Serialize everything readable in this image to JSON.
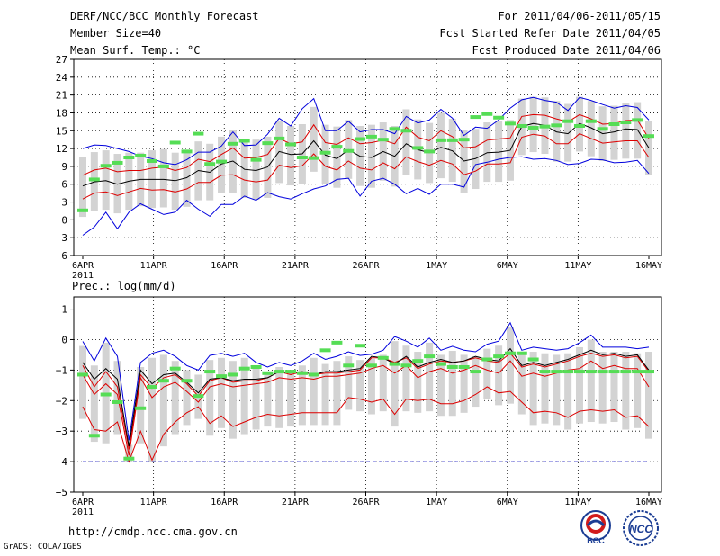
{
  "header": {
    "title": "DERF/NCC/BCC Monthly Forecast",
    "member_size": "Member Size=40",
    "variable": "Mean Surf. Temp.: °C",
    "period": "For 2011/04/06-2011/05/15",
    "started": "Fcst Started Refer Date 2011/04/05",
    "produced": "Fcst Produced Date 2011/04/06"
  },
  "footer": {
    "url": "http://cmdp.ncc.cma.gov.cn",
    "grads": "GrADS: COLA/IGES",
    "logo_bcc": "BCC",
    "logo_ncc": "NCC"
  },
  "colors": {
    "grid": "#000000",
    "box": "#d3d3d3",
    "ens_mean": "#000000",
    "std_band": "#dd0000",
    "extreme": "#0000dd",
    "climatology": "#55dd55"
  },
  "chart_data": [
    {
      "type": "box-plume",
      "title": "Mean Surf. Temp.: °C",
      "x_tick_labels": [
        "6APR",
        "11APR",
        "16APR",
        "21APR",
        "26APR",
        "1MAY",
        "6MAY",
        "11MAY",
        "16MAY"
      ],
      "x_year_label": "2011",
      "y_ticks": [
        27,
        24,
        21,
        18,
        15,
        12,
        9,
        6,
        3,
        0,
        -3,
        -6
      ],
      "ylim": [
        -6,
        27
      ],
      "series": [
        {
          "name": "max",
          "values": [
            12.0,
            12.6,
            12.5,
            12.0,
            11.5,
            10.7,
            10.3,
            9.6,
            9.3,
            10.1,
            11.4,
            11.4,
            12.4,
            14.8,
            12.5,
            12.6,
            14.4,
            17.1,
            15.8,
            18.7,
            20.4,
            15.0,
            15.0,
            16.6,
            14.8,
            15.2,
            15.2,
            14.5,
            17.4,
            16.3,
            16.8,
            18.6,
            17.1,
            14.2,
            15.6,
            15.4,
            16.8,
            18.8,
            20.2,
            20.6,
            20.1,
            19.8,
            18.4,
            20.6,
            20.1,
            19.4,
            18.8,
            19.2,
            18.9,
            16.8
          ]
        },
        {
          "name": "std_upper",
          "values": [
            7.5,
            8.4,
            8.7,
            8.1,
            8.3,
            8.3,
            8.7,
            8.9,
            8.3,
            8.8,
            10.2,
            9.8,
            11.0,
            12.1,
            10.4,
            10.5,
            11.0,
            13.7,
            12.8,
            13.1,
            16.0,
            13.0,
            12.7,
            13.8,
            12.8,
            13.0,
            13.4,
            12.8,
            15.6,
            13.9,
            13.3,
            15.0,
            14.0,
            12.1,
            12.3,
            13.4,
            13.6,
            13.8,
            17.4,
            17.7,
            17.6,
            17.0,
            16.5,
            17.7,
            17.0,
            16.1,
            16.2,
            16.7,
            16.8,
            13.7
          ]
        },
        {
          "name": "ens_mean",
          "values": [
            5.7,
            6.4,
            6.6,
            6.0,
            6.5,
            6.8,
            6.8,
            6.8,
            6.6,
            7.1,
            8.3,
            8.0,
            9.4,
            9.9,
            8.5,
            8.3,
            8.9,
            11.5,
            11.0,
            11.1,
            13.3,
            10.9,
            10.3,
            11.8,
            10.7,
            10.5,
            11.5,
            10.7,
            12.8,
            11.8,
            11.3,
            12.2,
            11.6,
            9.9,
            10.3,
            11.3,
            11.4,
            11.7,
            15.7,
            16.2,
            15.9,
            14.8,
            14.5,
            16.2,
            15.5,
            14.5,
            14.8,
            15.3,
            15.2,
            12.1
          ]
        },
        {
          "name": "std_lower",
          "values": [
            3.5,
            4.5,
            4.7,
            4.1,
            4.7,
            5.3,
            5.0,
            5.1,
            4.7,
            5.2,
            6.3,
            6.3,
            7.5,
            7.6,
            6.7,
            6.4,
            6.7,
            9.2,
            8.8,
            9.1,
            11.1,
            9.0,
            8.4,
            9.9,
            8.7,
            8.4,
            9.6,
            8.6,
            10.6,
            9.8,
            9.2,
            10.0,
            9.4,
            7.6,
            8.2,
            9.4,
            9.4,
            9.6,
            13.9,
            14.4,
            14.1,
            12.8,
            12.8,
            14.5,
            13.7,
            12.9,
            13.1,
            13.3,
            13.3,
            10.5
          ]
        },
        {
          "name": "min",
          "values": [
            -2.6,
            -1.2,
            1.3,
            -1.5,
            1.3,
            2.7,
            1.8,
            0.9,
            1.3,
            3.3,
            1.8,
            0.6,
            2.6,
            2.6,
            4.0,
            3.3,
            4.6,
            3.9,
            3.5,
            4.4,
            5.2,
            5.7,
            6.8,
            7.0,
            4.0,
            6.5,
            7.0,
            6.0,
            4.4,
            5.3,
            4.3,
            6.0,
            6.0,
            5.5,
            9.3,
            9.7,
            10.2,
            10.5,
            10.6,
            10.2,
            10.3,
            10.0,
            9.3,
            9.5,
            10.2,
            10.1,
            9.6,
            9.7,
            10.0,
            7.8
          ]
        },
        {
          "name": "climatology",
          "values": [
            1.6,
            6.8,
            9.1,
            9.6,
            10.5,
            10.8,
            9.9,
            9.0,
            13.0,
            11.5,
            14.5,
            9.4,
            9.8,
            12.8,
            13.3,
            10.1,
            12.9,
            13.7,
            12.7,
            10.5,
            10.4,
            11.3,
            12.3,
            11.6,
            13.6,
            14.0,
            13.5,
            15.3,
            15.0,
            12.1,
            11.5,
            13.4,
            13.4,
            13.5,
            17.3,
            17.8,
            17.2,
            16.2,
            15.8,
            15.5,
            15.7,
            15.9,
            16.6,
            15.8,
            16.6,
            15.3,
            16.1,
            16.4,
            16.8,
            14.1
          ]
        }
      ]
    },
    {
      "type": "box-plume",
      "title": "Prec.: log(mm/d)",
      "x_tick_labels": [
        "6APR",
        "11APR",
        "16APR",
        "21APR",
        "26APR",
        "1MAY",
        "6MAY",
        "11MAY",
        "16MAY"
      ],
      "x_year_label": "2011",
      "y_ticks": [
        1,
        0,
        -1,
        -2,
        -3,
        -4,
        -5
      ],
      "ylim": [
        -5,
        1.4
      ],
      "series": [
        {
          "name": "max",
          "values": [
            -0.06,
            -0.7,
            0.05,
            -0.55,
            -3.3,
            -0.75,
            -0.45,
            -0.35,
            -0.55,
            -0.85,
            -1.0,
            -0.52,
            -0.45,
            -0.55,
            -0.45,
            -0.75,
            -0.9,
            -0.75,
            -0.85,
            -0.7,
            -0.45,
            -0.65,
            -0.55,
            -0.4,
            -0.52,
            -0.48,
            -0.35,
            0.1,
            -0.05,
            -0.25,
            0.05,
            -0.35,
            -0.22,
            -0.35,
            -0.4,
            -0.15,
            -0.05,
            0.55,
            -0.35,
            -0.25,
            -0.3,
            -0.35,
            -0.3,
            -0.1,
            0.15,
            -0.25,
            -0.25,
            -0.25,
            -0.3,
            -0.25
          ]
        },
        {
          "name": "ens_mean",
          "values": [
            -0.75,
            -1.3,
            -0.95,
            -1.3,
            -3.5,
            -1.0,
            -1.45,
            -1.15,
            -1.1,
            -1.4,
            -1.75,
            -1.3,
            -1.25,
            -1.35,
            -1.3,
            -1.3,
            -1.25,
            -1.05,
            -1.1,
            -1.05,
            -1.15,
            -1.05,
            -1.05,
            -1.0,
            -0.95,
            -0.55,
            -0.6,
            -0.8,
            -0.55,
            -0.9,
            -0.75,
            -0.65,
            -0.75,
            -0.7,
            -0.55,
            -0.65,
            -0.7,
            -0.3,
            -0.85,
            -0.75,
            -0.85,
            -0.75,
            -0.65,
            -0.5,
            -0.35,
            -0.5,
            -0.45,
            -0.55,
            -0.5,
            -1.0
          ]
        },
        {
          "name": "std_upper",
          "values": [
            -0.85,
            -1.55,
            -1.05,
            -1.55,
            -3.6,
            -1.15,
            -1.6,
            -1.25,
            -1.15,
            -1.45,
            -1.85,
            -1.35,
            -1.25,
            -1.4,
            -1.35,
            -1.35,
            -1.25,
            -1.05,
            -1.15,
            -1.05,
            -1.15,
            -1.1,
            -1.1,
            -1.05,
            -1.0,
            -0.6,
            -0.6,
            -0.75,
            -0.6,
            -0.95,
            -0.8,
            -0.7,
            -0.75,
            -0.7,
            -0.6,
            -0.7,
            -0.75,
            -0.45,
            -0.9,
            -0.8,
            -0.9,
            -0.8,
            -0.7,
            -0.55,
            -0.45,
            -0.55,
            -0.5,
            -0.6,
            -0.55,
            -1.05
          ]
        },
        {
          "name": "std_lower",
          "values": [
            -1.15,
            -1.8,
            -1.45,
            -1.8,
            -3.8,
            -1.25,
            -1.9,
            -1.55,
            -1.4,
            -1.7,
            -2.05,
            -1.55,
            -1.45,
            -1.55,
            -1.5,
            -1.45,
            -1.4,
            -1.25,
            -1.3,
            -1.25,
            -1.3,
            -1.2,
            -1.2,
            -1.15,
            -1.1,
            -0.95,
            -0.85,
            -1.1,
            -0.85,
            -1.25,
            -1.05,
            -0.95,
            -1.1,
            -1.0,
            -0.85,
            -1.0,
            -1.1,
            -0.7,
            -1.2,
            -1.1,
            -1.2,
            -1.1,
            -1.0,
            -0.95,
            -0.7,
            -0.95,
            -0.85,
            -0.95,
            -0.95,
            -1.55
          ]
        },
        {
          "name": "min",
          "values": [
            -2.2,
            -2.95,
            -3.0,
            -2.7,
            -4.0,
            -3.0,
            -3.95,
            -3.1,
            -2.7,
            -2.4,
            -2.2,
            -2.75,
            -2.5,
            -2.85,
            -2.7,
            -2.55,
            -2.45,
            -2.5,
            -2.45,
            -2.4,
            -2.4,
            -2.4,
            -2.4,
            -1.9,
            -1.95,
            -2.05,
            -1.95,
            -2.45,
            -1.95,
            -2.0,
            -1.95,
            -2.1,
            -2.1,
            -2.0,
            -1.8,
            -1.55,
            -1.75,
            -1.7,
            -2.05,
            -2.4,
            -2.35,
            -2.4,
            -2.55,
            -2.35,
            -2.3,
            -2.35,
            -2.3,
            -2.55,
            -2.5,
            -2.85
          ]
        },
        {
          "name": "climatology",
          "values": [
            -1.15,
            -3.15,
            -1.8,
            -2.05,
            -3.9,
            -2.25,
            -1.55,
            -1.35,
            -0.95,
            -1.35,
            -1.85,
            -1.05,
            -1.2,
            -1.15,
            -0.95,
            -0.9,
            -1.1,
            -1.05,
            -1.05,
            -1.1,
            -1.15,
            -0.35,
            -0.1,
            -0.85,
            -0.2,
            -0.85,
            -0.6,
            -0.8,
            -0.85,
            -0.7,
            -0.55,
            -0.8,
            -0.9,
            -0.9,
            -1.05,
            -0.65,
            -0.55,
            -0.45,
            -0.45,
            -0.65,
            -1.05,
            -1.05,
            -1.05,
            -1.05,
            -1.05,
            -1.05,
            -1.05,
            -1.05,
            -1.05,
            -1.05
          ]
        },
        {
          "name": "floor",
          "values": [
            -4.0,
            -4.0
          ]
        }
      ]
    }
  ]
}
